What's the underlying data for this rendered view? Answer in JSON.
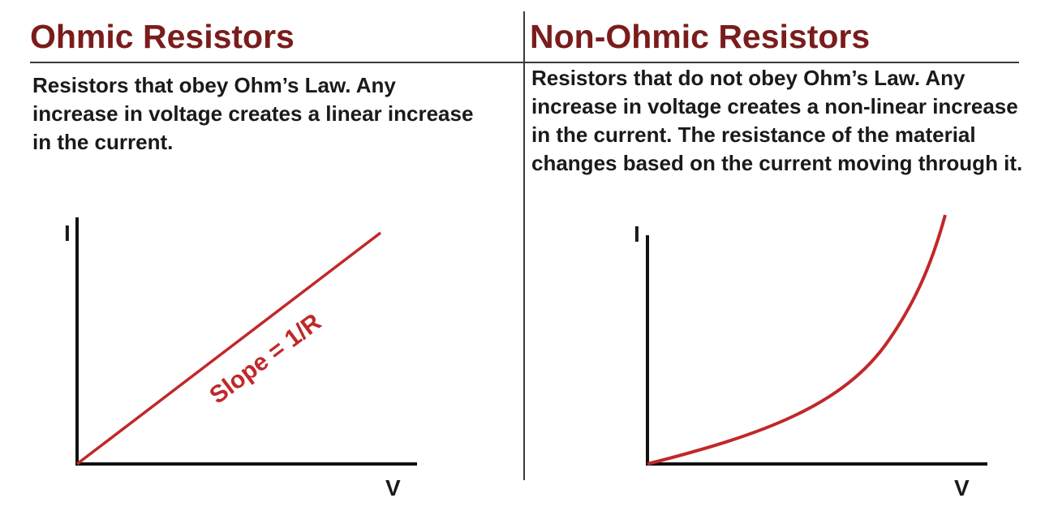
{
  "left_panel": {
    "title": "Ohmic Resistors",
    "description": "Resistors that obey Ohm’s Law. Any increase in voltage creates a linear increase in the current.",
    "graph": {
      "y_axis_label": "I",
      "x_axis_label": "V",
      "curve_label": "Slope = 1/R",
      "curve_shape": "linear"
    }
  },
  "right_panel": {
    "title": "Non-Ohmic Resistors",
    "description": "Resistors that do not obey Ohm’s Law. Any increase in voltage creates a non-linear increase in the current. The resistance of the material changes based on the current moving through it.",
    "graph": {
      "y_axis_label": "I",
      "x_axis_label": "V",
      "curve_shape": "exponential"
    }
  },
  "colors": {
    "title": "#7a1c1c",
    "curve": "#c0282a",
    "axis": "#111111",
    "text": "#1a1a1a"
  }
}
